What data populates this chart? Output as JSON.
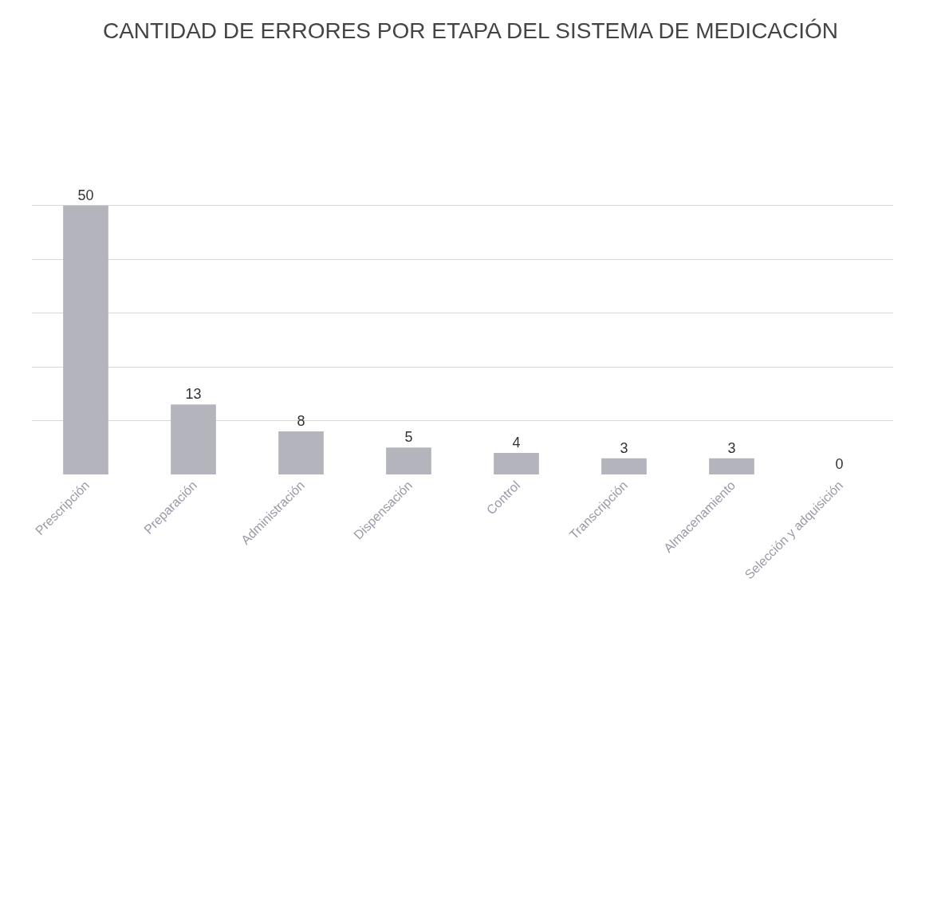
{
  "chart_data": {
    "type": "bar",
    "title": "CANTIDAD DE ERRORES POR ETAPA DEL SISTEMA DE MEDICACIÓN",
    "categories": [
      "Prescripción",
      "Preparación",
      "Administración",
      "Dispensación",
      "Control",
      "Transcripción",
      "Almacenamiento",
      "Selección y adquisición"
    ],
    "values": [
      50,
      13,
      8,
      5,
      4,
      3,
      3,
      0
    ],
    "color": "#b4b4bc",
    "data_labels": true,
    "grid": "y",
    "tick_labels": "x"
  }
}
